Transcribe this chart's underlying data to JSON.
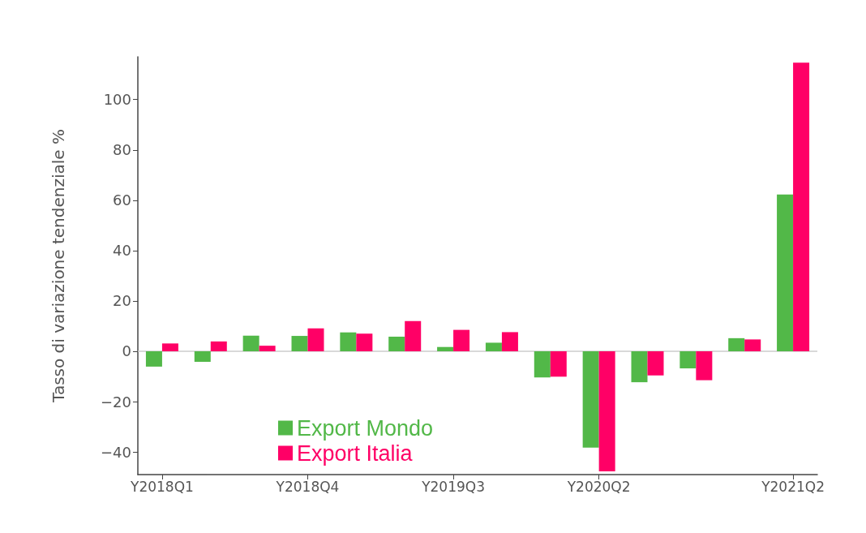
{
  "chart_data": {
    "type": "bar",
    "ylabel": "Tasso di variazione tendenziale %",
    "categories": [
      "Y2018Q1",
      null,
      null,
      "Y2018Q4",
      null,
      null,
      "Y2019Q3",
      null,
      null,
      "Y2020Q2",
      null,
      null,
      null,
      "Y2021Q2"
    ],
    "series": [
      {
        "name": "Export Mondo",
        "color": "#52b848",
        "values": [
          -6.1,
          -4.2,
          6.2,
          6.1,
          7.5,
          5.8,
          1.7,
          3.4,
          -10.4,
          -38.3,
          -12.3,
          -6.8,
          5.2,
          62.3
        ]
      },
      {
        "name": "Export Italia",
        "color": "#ff0066",
        "values": [
          3.1,
          3.9,
          2.2,
          9.1,
          7.0,
          12.0,
          8.5,
          7.6,
          -10.1,
          -47.7,
          -9.6,
          -11.5,
          4.7,
          114.7
        ]
      }
    ],
    "ylim": [
      -49,
      117
    ],
    "yticks": [
      -40,
      -20,
      0,
      20,
      40,
      60,
      80,
      100
    ],
    "ref_lines": [
      {
        "axis": "y",
        "value": 0,
        "color": "#cccccc"
      }
    ],
    "grid": false,
    "legend": "bottom left"
  }
}
